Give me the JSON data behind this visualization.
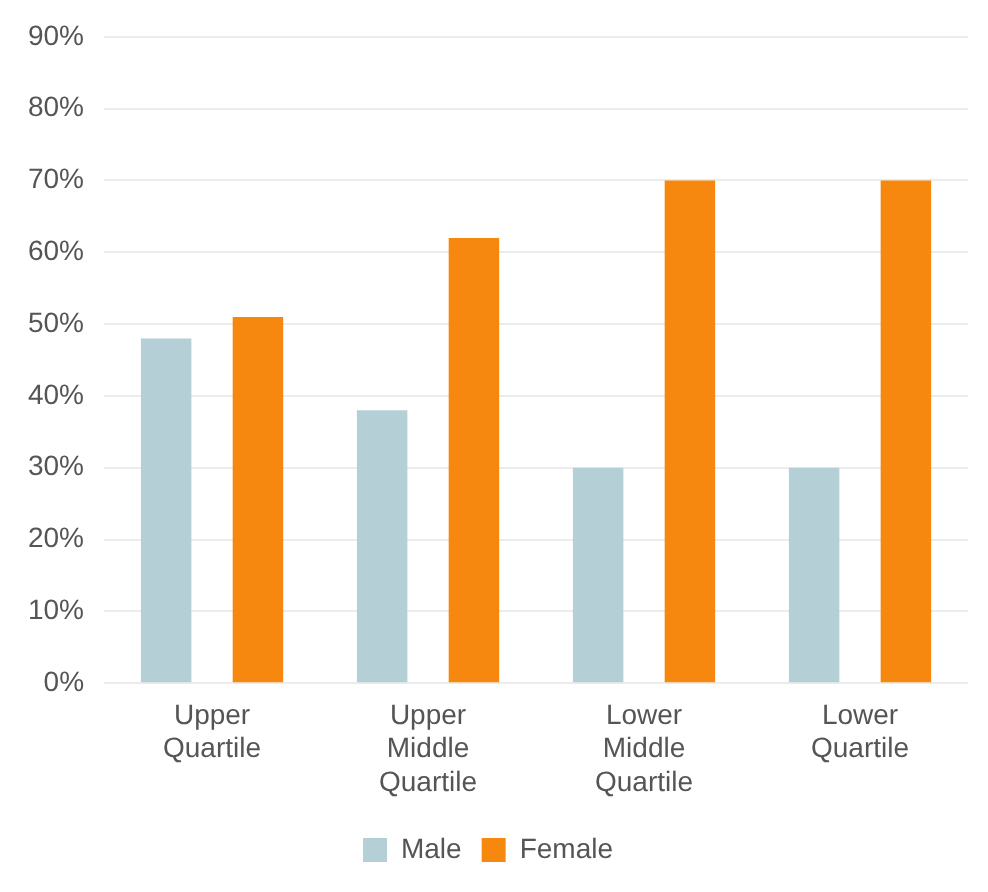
{
  "chart_data": {
    "type": "bar",
    "categories": [
      "Upper Quartile",
      "Upper Middle Quartile",
      "Lower Middle Quartile",
      "Lower Quartile"
    ],
    "series": [
      {
        "name": "Male",
        "color": "#b4cfd6",
        "values": [
          48,
          38,
          30,
          30
        ]
      },
      {
        "name": "Female",
        "color": "#f7880f",
        "values": [
          51,
          62,
          70,
          70
        ]
      }
    ],
    "ylim": [
      0,
      90
    ],
    "yticks": [
      {
        "value": 0,
        "label": "0%"
      },
      {
        "value": 10,
        "label": "10%"
      },
      {
        "value": 20,
        "label": "20%"
      },
      {
        "value": 30,
        "label": "30%"
      },
      {
        "value": 40,
        "label": "40%"
      },
      {
        "value": 50,
        "label": "50%"
      },
      {
        "value": 60,
        "label": "60%"
      },
      {
        "value": 70,
        "label": "70%"
      },
      {
        "value": 80,
        "label": "80%"
      },
      {
        "value": 90,
        "label": "90%"
      }
    ],
    "grid": "y",
    "legend": "bottom"
  }
}
